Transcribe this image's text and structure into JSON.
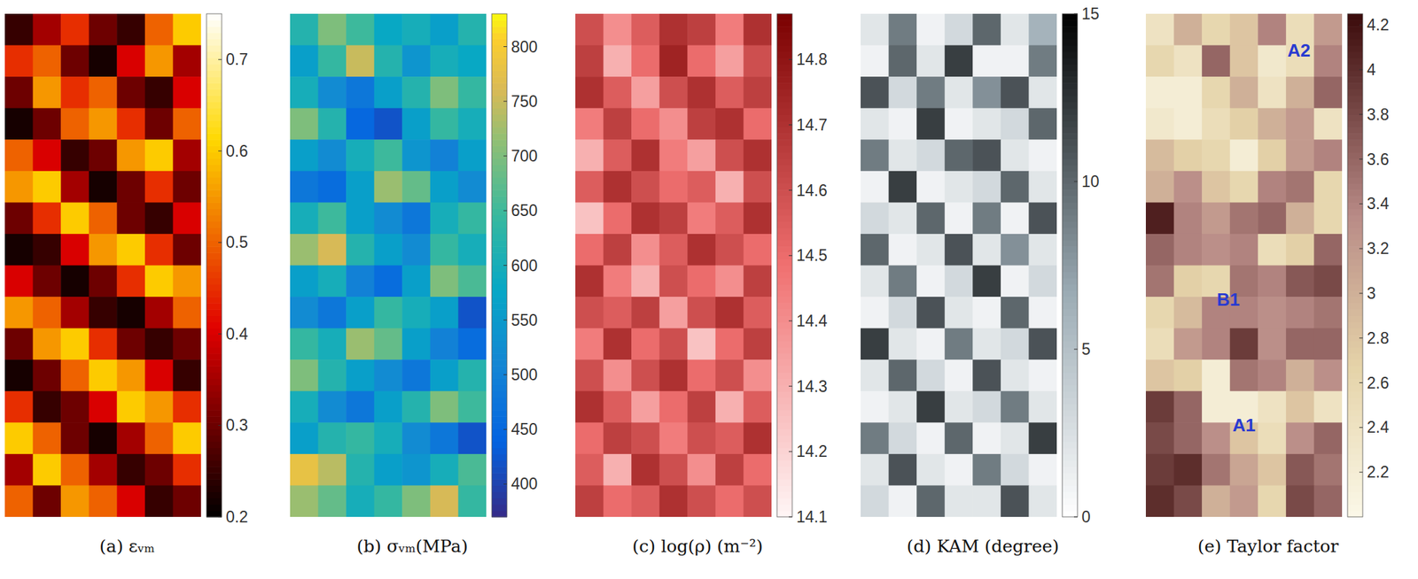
{
  "chart_data": [
    {
      "type": "heatmap",
      "title": "(a) εᵥₘ",
      "color_range": [
        0.2,
        0.75
      ],
      "color_ticks": [
        0.2,
        0.3,
        0.4,
        0.5,
        0.6,
        0.7
      ],
      "cells": [
        [
          0.25,
          0.35,
          0.45,
          0.3,
          0.25,
          0.5,
          0.6
        ],
        [
          0.45,
          0.5,
          0.3,
          0.22,
          0.4,
          0.55,
          0.35
        ],
        [
          0.3,
          0.55,
          0.45,
          0.5,
          0.3,
          0.25,
          0.4
        ],
        [
          0.22,
          0.3,
          0.5,
          0.55,
          0.45,
          0.3,
          0.5
        ],
        [
          0.5,
          0.4,
          0.25,
          0.3,
          0.55,
          0.6,
          0.35
        ],
        [
          0.55,
          0.6,
          0.35,
          0.22,
          0.3,
          0.45,
          0.3
        ],
        [
          0.3,
          0.45,
          0.6,
          0.5,
          0.3,
          0.25,
          0.4
        ],
        [
          0.22,
          0.25,
          0.4,
          0.55,
          0.6,
          0.45,
          0.3
        ],
        [
          0.4,
          0.3,
          0.22,
          0.3,
          0.45,
          0.6,
          0.55
        ],
        [
          0.55,
          0.5,
          0.35,
          0.25,
          0.22,
          0.35,
          0.5
        ],
        [
          0.3,
          0.55,
          0.6,
          0.45,
          0.3,
          0.25,
          0.3
        ],
        [
          0.22,
          0.3,
          0.5,
          0.6,
          0.55,
          0.4,
          0.25
        ],
        [
          0.45,
          0.25,
          0.3,
          0.4,
          0.6,
          0.55,
          0.45
        ],
        [
          0.6,
          0.5,
          0.3,
          0.22,
          0.35,
          0.5,
          0.6
        ],
        [
          0.35,
          0.6,
          0.5,
          0.35,
          0.25,
          0.3,
          0.45
        ],
        [
          0.5,
          0.3,
          0.55,
          0.5,
          0.4,
          0.25,
          0.3
        ]
      ]
    },
    {
      "type": "heatmap",
      "title": "(b) σᵥₘ(MPa)",
      "color_range": [
        370,
        830
      ],
      "color_ticks": [
        400,
        450,
        500,
        550,
        600,
        650,
        700,
        750,
        800
      ],
      "cells": [
        [
          620,
          700,
          650,
          580,
          600,
          560,
          620
        ],
        [
          560,
          640,
          750,
          620,
          540,
          600,
          580
        ],
        [
          600,
          520,
          480,
          560,
          620,
          700,
          640
        ],
        [
          700,
          620,
          450,
          420,
          560,
          640,
          600
        ],
        [
          560,
          520,
          600,
          650,
          540,
          500,
          560
        ],
        [
          480,
          460,
          560,
          720,
          680,
          560,
          520
        ],
        [
          600,
          650,
          560,
          520,
          480,
          600,
          640
        ],
        [
          720,
          760,
          620,
          560,
          520,
          640,
          600
        ],
        [
          560,
          600,
          500,
          460,
          560,
          700,
          660
        ],
        [
          520,
          480,
          560,
          640,
          600,
          560,
          420
        ],
        [
          640,
          600,
          720,
          680,
          560,
          500,
          460
        ],
        [
          700,
          620,
          560,
          520,
          480,
          560,
          620
        ],
        [
          600,
          520,
          480,
          560,
          620,
          700,
          650
        ],
        [
          560,
          620,
          640,
          600,
          520,
          480,
          420
        ],
        [
          780,
          740,
          620,
          560,
          540,
          600,
          660
        ],
        [
          720,
          680,
          600,
          640,
          700,
          760,
          640
        ]
      ]
    },
    {
      "type": "heatmap",
      "title": "(c) log(ρ) (m⁻²)",
      "color_range": [
        14.1,
        14.87
      ],
      "color_ticks": [
        14.1,
        14.2,
        14.3,
        14.4,
        14.5,
        14.6,
        14.7,
        14.8
      ],
      "cells": [
        [
          14.6,
          14.4,
          14.55,
          14.7,
          14.65,
          14.45,
          14.7
        ],
        [
          14.65,
          14.3,
          14.5,
          14.75,
          14.5,
          14.35,
          14.6
        ],
        [
          14.7,
          14.55,
          14.35,
          14.6,
          14.7,
          14.55,
          14.65
        ],
        [
          14.45,
          14.65,
          14.5,
          14.4,
          14.65,
          14.7,
          14.5
        ],
        [
          14.3,
          14.55,
          14.7,
          14.45,
          14.35,
          14.6,
          14.7
        ],
        [
          14.55,
          14.7,
          14.6,
          14.5,
          14.55,
          14.3,
          14.6
        ],
        [
          14.25,
          14.5,
          14.7,
          14.65,
          14.45,
          14.55,
          14.7
        ],
        [
          14.5,
          14.65,
          14.4,
          14.55,
          14.7,
          14.6,
          14.5
        ],
        [
          14.7,
          14.45,
          14.3,
          14.6,
          14.5,
          14.4,
          14.65
        ],
        [
          14.6,
          14.55,
          14.65,
          14.35,
          14.6,
          14.7,
          14.55
        ],
        [
          14.45,
          14.7,
          14.5,
          14.6,
          14.25,
          14.5,
          14.65
        ],
        [
          14.6,
          14.4,
          14.6,
          14.7,
          14.5,
          14.6,
          14.4
        ],
        [
          14.7,
          14.55,
          14.35,
          14.5,
          14.65,
          14.3,
          14.55
        ],
        [
          14.5,
          14.65,
          14.6,
          14.45,
          14.6,
          14.55,
          14.7
        ],
        [
          14.55,
          14.3,
          14.7,
          14.6,
          14.4,
          14.65,
          14.5
        ],
        [
          14.65,
          14.5,
          14.55,
          14.7,
          14.6,
          14.5,
          14.6
        ]
      ]
    },
    {
      "type": "heatmap",
      "title": "(d) KAM (degree)",
      "color_range": [
        0,
        15
      ],
      "color_ticks": [
        0,
        5,
        10,
        15
      ],
      "cells": [
        [
          2,
          9,
          1,
          3,
          10,
          2,
          6
        ],
        [
          1,
          10,
          2,
          12,
          1,
          1,
          9
        ],
        [
          11,
          3,
          9,
          2,
          8,
          11,
          2
        ],
        [
          2,
          1,
          12,
          1,
          2,
          3,
          10
        ],
        [
          9,
          2,
          3,
          10,
          11,
          2,
          1
        ],
        [
          1,
          12,
          1,
          2,
          3,
          10,
          2
        ],
        [
          3,
          2,
          10,
          1,
          9,
          1,
          11
        ],
        [
          10,
          1,
          2,
          11,
          2,
          8,
          2
        ],
        [
          2,
          9,
          1,
          3,
          12,
          1,
          3
        ],
        [
          1,
          3,
          11,
          2,
          1,
          10,
          1
        ],
        [
          12,
          2,
          1,
          9,
          2,
          3,
          11
        ],
        [
          2,
          10,
          3,
          1,
          11,
          2,
          1
        ],
        [
          1,
          2,
          12,
          2,
          3,
          9,
          2
        ],
        [
          9,
          3,
          1,
          10,
          1,
          2,
          12
        ],
        [
          2,
          11,
          2,
          1,
          9,
          3,
          1
        ],
        [
          3,
          1,
          10,
          2,
          2,
          11,
          2
        ]
      ]
    },
    {
      "type": "heatmap",
      "title": "(e) Taylor factor",
      "color_range": [
        2.0,
        4.25
      ],
      "color_ticks": [
        2.2,
        2.4,
        2.6,
        2.8,
        3,
        3.2,
        3.4,
        3.6,
        3.8,
        4,
        4.2
      ],
      "annotations": [
        "A2",
        "B1",
        "A1"
      ],
      "cells": [
        [
          2.4,
          3.0,
          2.6,
          2.8,
          3.4,
          2.5,
          3.2
        ],
        [
          2.6,
          2.4,
          3.6,
          2.8,
          2.3,
          2.5,
          3.4
        ],
        [
          2.2,
          2.2,
          2.6,
          3.0,
          2.4,
          3.0,
          3.6
        ],
        [
          2.3,
          2.2,
          2.5,
          2.7,
          3.0,
          3.2,
          2.4
        ],
        [
          2.9,
          2.7,
          2.6,
          2.2,
          2.7,
          3.2,
          3.4
        ],
        [
          3.0,
          3.3,
          2.8,
          2.6,
          3.4,
          3.5,
          2.6
        ],
        [
          4.1,
          3.4,
          3.2,
          3.5,
          3.6,
          3.0,
          2.6
        ],
        [
          3.6,
          3.4,
          3.3,
          3.4,
          2.5,
          2.7,
          3.6
        ],
        [
          3.5,
          2.7,
          2.6,
          3.5,
          3.4,
          3.7,
          3.8
        ],
        [
          2.6,
          2.9,
          3.4,
          3.4,
          3.3,
          3.4,
          3.5
        ],
        [
          2.5,
          3.2,
          3.4,
          3.9,
          3.3,
          3.6,
          3.6
        ],
        [
          2.8,
          2.7,
          2.2,
          3.5,
          3.4,
          3.0,
          3.3
        ],
        [
          3.9,
          3.6,
          2.2,
          2.2,
          2.4,
          2.8,
          2.4
        ],
        [
          3.8,
          3.6,
          3.3,
          2.8,
          2.5,
          3.3,
          3.6
        ],
        [
          3.9,
          4.0,
          3.5,
          3.1,
          2.8,
          3.7,
          3.5
        ],
        [
          4.0,
          3.8,
          3.0,
          3.2,
          2.6,
          3.8,
          3.6
        ]
      ]
    }
  ]
}
